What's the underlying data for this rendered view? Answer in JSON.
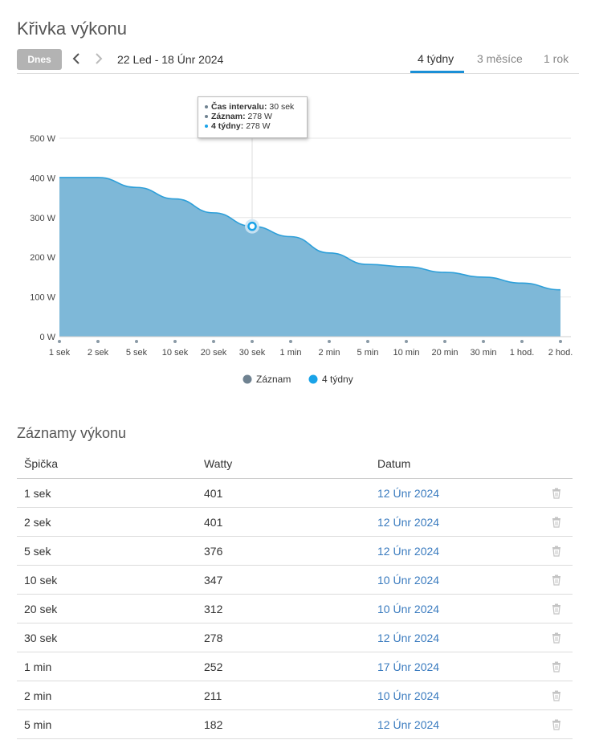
{
  "page": {
    "title": "Křivka výkonu"
  },
  "toolbar": {
    "today_label": "Dnes",
    "prev_icon": "chevron-left-icon",
    "next_icon": "chevron-right-icon",
    "date_range": "22 Led - 18 Únr 2024",
    "tabs": [
      {
        "label": "4 týdny",
        "active": true
      },
      {
        "label": "3 měsíce",
        "active": false
      },
      {
        "label": "1 rok",
        "active": false
      }
    ]
  },
  "chart_data": {
    "type": "area",
    "categories": [
      "1 sek",
      "2 sek",
      "5 sek",
      "10 sek",
      "20 sek",
      "30 sek",
      "1 min",
      "2 min",
      "5 min",
      "10 min",
      "20 min",
      "30 min",
      "1 hod.",
      "2 hod."
    ],
    "series": [
      {
        "name": "4 týdny",
        "values": [
          401,
          401,
          376,
          347,
          312,
          278,
          252,
          211,
          182,
          176,
          162,
          150,
          135,
          118
        ],
        "color": "#7eb8d8"
      }
    ],
    "y_ticks": [
      "0 W",
      "100 W",
      "200 W",
      "300 W",
      "400 W",
      "500 W"
    ],
    "ylim": [
      0,
      500
    ],
    "legend": [
      {
        "name": "Záznam",
        "color": "#6f8291"
      },
      {
        "name": "4 týdny",
        "color": "#1aa3e8"
      }
    ],
    "tooltip": {
      "highlight_category": "30 sek",
      "rows": [
        {
          "label": "Čas intervalu:",
          "value": "30 sek",
          "color": "#6f8291"
        },
        {
          "label": "Záznam:",
          "value": "278 W",
          "color": "#6f8291"
        },
        {
          "label": "4 týdny:",
          "value": "278 W",
          "color": "#1aa3e8"
        }
      ]
    },
    "grid": true,
    "legend_position": "bottom"
  },
  "records": {
    "title": "Záznamy výkonu",
    "headers": [
      "Špička",
      "Watty",
      "Datum"
    ],
    "delete_icon": "trash-icon",
    "rows": [
      {
        "peak": "1 sek",
        "watts": "401",
        "date": "12 Únr 2024"
      },
      {
        "peak": "2 sek",
        "watts": "401",
        "date": "12 Únr 2024"
      },
      {
        "peak": "5 sek",
        "watts": "376",
        "date": "12 Únr 2024"
      },
      {
        "peak": "10 sek",
        "watts": "347",
        "date": "10 Únr 2024"
      },
      {
        "peak": "20 sek",
        "watts": "312",
        "date": "10 Únr 2024"
      },
      {
        "peak": "30 sek",
        "watts": "278",
        "date": "12 Únr 2024"
      },
      {
        "peak": "1 min",
        "watts": "252",
        "date": "17 Únr 2024"
      },
      {
        "peak": "2 min",
        "watts": "211",
        "date": "10 Únr 2024"
      },
      {
        "peak": "5 min",
        "watts": "182",
        "date": "12 Únr 2024"
      }
    ]
  }
}
